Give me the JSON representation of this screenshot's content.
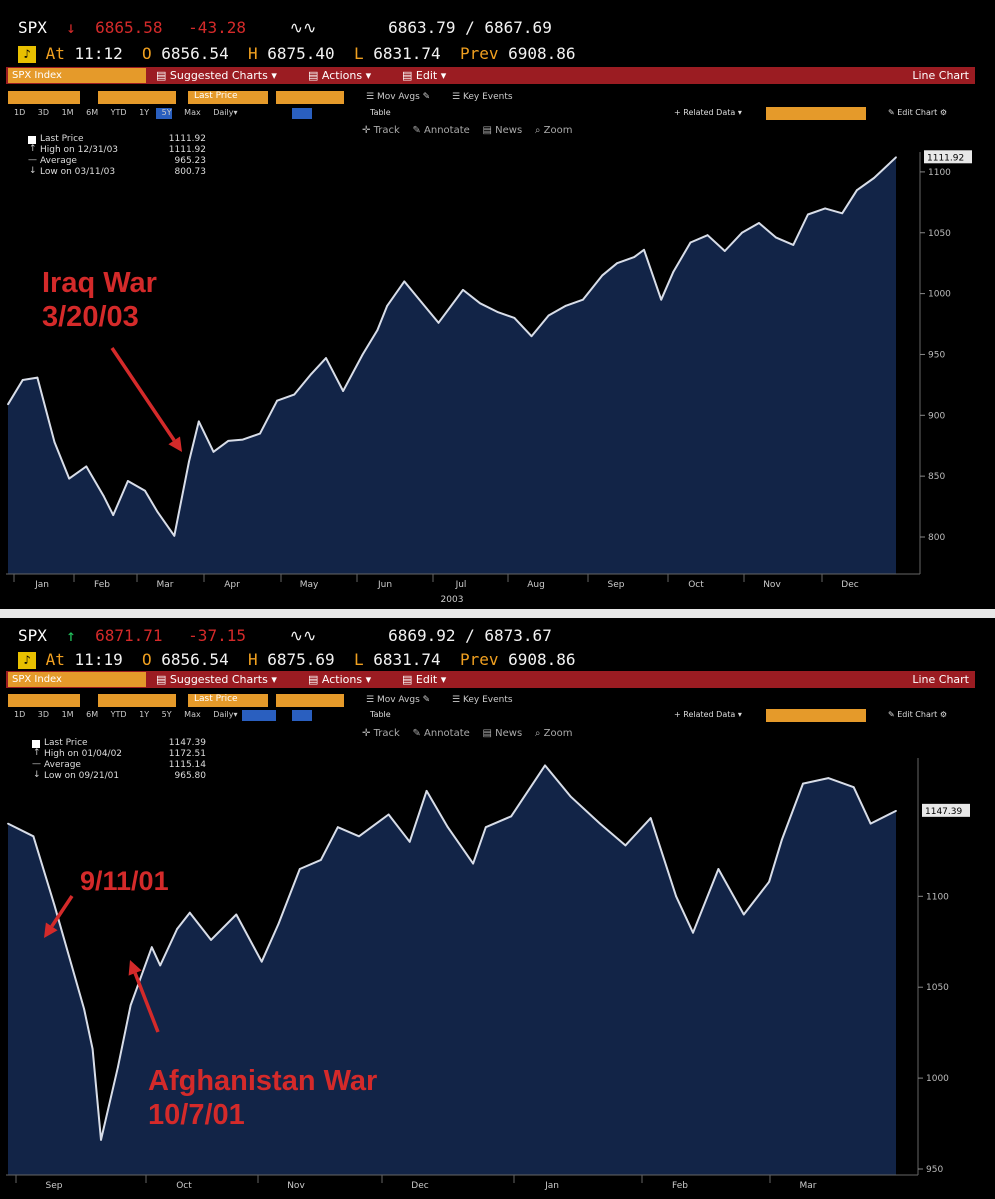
{
  "panels": [
    {
      "quote": {
        "symbol": "SPX",
        "last": "6865.58",
        "change": "-43.28",
        "bid_ask": "6863.79 / 6867.69",
        "at_time": "11:12",
        "open": "6856.54",
        "high": "6875.40",
        "low": "6831.74",
        "prev": "6908.86"
      },
      "menu": {
        "index_label": "SPX Index",
        "suggested": "Suggested Charts",
        "actions": "Actions",
        "edit": "Edit",
        "chart_type": "Line Chart",
        "toolbar": [
          "Last Price",
          "Mov Avgs",
          "Key Events",
          "Related Data",
          "Edit Chart",
          "Table"
        ],
        "periods": [
          "1D",
          "3D",
          "1M",
          "6M",
          "YTD",
          "1Y",
          "5Y",
          "Max",
          "Daily"
        ]
      },
      "tools": [
        "Track",
        "Annotate",
        "News",
        "Zoom"
      ],
      "legend": [
        {
          "label": "Last Price",
          "value": "1111.92"
        },
        {
          "label": "High on 12/31/03",
          "value": "1111.92"
        },
        {
          "label": "Average",
          "value": "965.23"
        },
        {
          "label": "Low on 03/11/03",
          "value": "800.73"
        }
      ],
      "last_tag": "1111.92",
      "annotations": [
        {
          "text": "Iraq War\n3/20/03"
        }
      ]
    },
    {
      "quote": {
        "symbol": "SPX",
        "last": "6871.71",
        "change": "-37.15",
        "bid_ask": "6869.92 / 6873.67",
        "at_time": "11:19",
        "open": "6856.54",
        "high": "6875.69",
        "low": "6831.74",
        "prev": "6908.86"
      },
      "menu": {
        "index_label": "SPX Index",
        "suggested": "Suggested Charts",
        "actions": "Actions",
        "edit": "Edit",
        "chart_type": "Line Chart",
        "toolbar": [
          "Last Price",
          "Mov Avgs",
          "Key Events",
          "Related Data",
          "Edit Chart",
          "Table"
        ],
        "periods": [
          "1D",
          "3D",
          "1M",
          "6M",
          "YTD",
          "1Y",
          "5Y",
          "Max",
          "Daily"
        ]
      },
      "tools": [
        "Track",
        "Annotate",
        "News",
        "Zoom"
      ],
      "legend": [
        {
          "label": "Last Price",
          "value": "1147.39"
        },
        {
          "label": "High on 01/04/02",
          "value": "1172.51"
        },
        {
          "label": "Average",
          "value": "1115.14"
        },
        {
          "label": "Low on 09/21/01",
          "value": "965.80"
        }
      ],
      "last_tag": "1147.39",
      "annotations": [
        {
          "text": "9/11/01"
        },
        {
          "text": "Afghanistan War\n10/7/01"
        }
      ]
    }
  ],
  "colors": {
    "fill": "#122447",
    "line": "#d8dde8",
    "red_bar": "#9b1c22",
    "orange": "#e59a2a",
    "annotation": "#d42a2a"
  },
  "chart_data": [
    {
      "type": "area",
      "title": "SPX Index",
      "xlabel": "2003",
      "ylim": [
        770,
        1130
      ],
      "yticks": [
        800,
        850,
        900,
        950,
        1000,
        1050,
        1100
      ],
      "xtick_labels": [
        "Jan",
        "Feb",
        "Mar",
        "Apr",
        "May",
        "Jun",
        "Jul",
        "Aug",
        "Sep",
        "Oct",
        "Nov",
        "Dec"
      ],
      "x": [
        "2003-01-02",
        "2003-01-08",
        "2003-01-14",
        "2003-01-21",
        "2003-01-27",
        "2003-02-03",
        "2003-02-10",
        "2003-02-14",
        "2003-02-20",
        "2003-02-27",
        "2003-03-04",
        "2003-03-11",
        "2003-03-17",
        "2003-03-21",
        "2003-03-27",
        "2003-04-02",
        "2003-04-08",
        "2003-04-15",
        "2003-04-22",
        "2003-04-29",
        "2003-05-06",
        "2003-05-12",
        "2003-05-19",
        "2003-05-27",
        "2003-06-02",
        "2003-06-06",
        "2003-06-13",
        "2003-06-20",
        "2003-06-27",
        "2003-07-07",
        "2003-07-14",
        "2003-07-21",
        "2003-07-28",
        "2003-08-04",
        "2003-08-11",
        "2003-08-18",
        "2003-08-25",
        "2003-09-02",
        "2003-09-08",
        "2003-09-15",
        "2003-09-19",
        "2003-09-26",
        "2003-10-01",
        "2003-10-08",
        "2003-10-15",
        "2003-10-22",
        "2003-10-29",
        "2003-11-05",
        "2003-11-12",
        "2003-11-19",
        "2003-11-25",
        "2003-12-02",
        "2003-12-09",
        "2003-12-15",
        "2003-12-22",
        "2003-12-31"
      ],
      "series": [
        {
          "values": [
            909,
            929,
            931,
            878,
            848,
            858,
            834,
            818,
            846,
            838,
            821,
            801,
            862,
            895,
            870,
            879,
            880,
            885,
            912,
            917,
            934,
            947,
            920,
            950,
            970,
            990,
            1010,
            993,
            976,
            1003,
            992,
            985,
            980,
            965,
            982,
            990,
            995,
            1015,
            1025,
            1030,
            1036,
            995,
            1018,
            1042,
            1048,
            1035,
            1050,
            1058,
            1046,
            1040,
            1065,
            1070,
            1066,
            1085,
            1095,
            1112
          ]
        }
      ]
    },
    {
      "type": "area",
      "title": "SPX Index",
      "ylim": [
        950,
        1180
      ],
      "yticks": [
        950,
        1000,
        1050,
        1100
      ],
      "xtick_labels": [
        "Sep",
        "Oct",
        "Nov",
        "Dec",
        "Jan",
        "Feb",
        "Mar"
      ],
      "x": [
        "2001-08-30",
        "2001-09-05",
        "2001-09-10",
        "2001-09-17",
        "2001-09-19",
        "2001-09-21",
        "2001-09-25",
        "2001-09-28",
        "2001-10-03",
        "2001-10-05",
        "2001-10-09",
        "2001-10-12",
        "2001-10-17",
        "2001-10-23",
        "2001-10-29",
        "2001-11-02",
        "2001-11-07",
        "2001-11-12",
        "2001-11-16",
        "2001-11-21",
        "2001-11-28",
        "2001-12-03",
        "2001-12-07",
        "2001-12-12",
        "2001-12-18",
        "2001-12-21",
        "2001-12-27",
        "2002-01-04",
        "2002-01-10",
        "2002-01-17",
        "2002-01-23",
        "2002-01-29",
        "2002-02-04",
        "2002-02-08",
        "2002-02-14",
        "2002-02-20",
        "2002-02-26",
        "2002-03-01",
        "2002-03-06",
        "2002-03-12",
        "2002-03-18",
        "2002-03-22",
        "2002-03-28"
      ],
      "series": [
        {
          "values": [
            1140,
            1133,
            1095,
            1038,
            1016,
            966,
            1006,
            1040,
            1072,
            1062,
            1082,
            1091,
            1076,
            1090,
            1064,
            1085,
            1115,
            1120,
            1138,
            1133,
            1145,
            1130,
            1158,
            1138,
            1118,
            1138,
            1144,
            1172,
            1155,
            1140,
            1128,
            1143,
            1100,
            1080,
            1115,
            1090,
            1108,
            1131,
            1162,
            1165,
            1160,
            1140,
            1147
          ]
        }
      ]
    }
  ]
}
